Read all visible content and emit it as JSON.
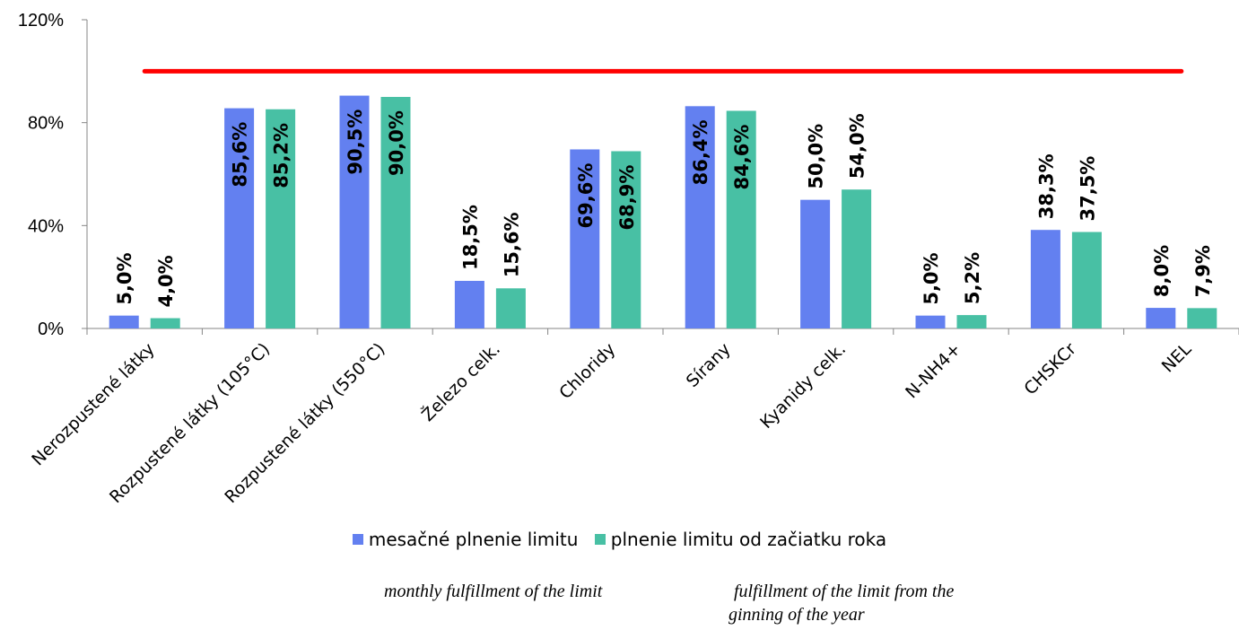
{
  "chart_data": {
    "type": "bar",
    "categories": [
      "Nerozpustené látky",
      "Rozpustené látky (105°C)",
      "Rozpustené látky (550°C)",
      "Železo celk.",
      "Chloridy",
      "Sírany",
      "Kyanidy celk.",
      "N-NH4+",
      "CHSKCr",
      "NEL"
    ],
    "series": [
      {
        "name": "mesačné plnenie limitu",
        "color": "#6380F0",
        "values": [
          5.0,
          85.6,
          90.5,
          18.5,
          69.6,
          86.4,
          50.0,
          5.0,
          38.3,
          8.0
        ],
        "labels": [
          "5,0%",
          "85,6%",
          "90,5%",
          "18,5%",
          "69,6%",
          "86,4%",
          "50,0%",
          "5,0%",
          "38,3%",
          "8,0%"
        ]
      },
      {
        "name": "plnenie limitu od začiatku roka",
        "color": "#48C0A4",
        "values": [
          4.0,
          85.2,
          90.0,
          15.6,
          68.9,
          84.6,
          54.0,
          5.2,
          37.5,
          7.9
        ],
        "labels": [
          "4,0%",
          "85,2%",
          "90,0%",
          "15,6%",
          "68,9%",
          "84,6%",
          "54,0%",
          "5,2%",
          "37,5%",
          "7,9%"
        ]
      }
    ],
    "limit_line": {
      "value": 100,
      "color": "#FF0000"
    },
    "yticks": [
      "0%",
      "40%",
      "80%",
      "120%"
    ],
    "ylim": [
      0,
      120
    ],
    "grid": false,
    "legend": "bottom"
  },
  "captions": {
    "monthly": "monthly fulfillment of the limit",
    "yearly_line1": "fulfillment of the limit from the",
    "yearly_line2": "ginning of the year"
  }
}
